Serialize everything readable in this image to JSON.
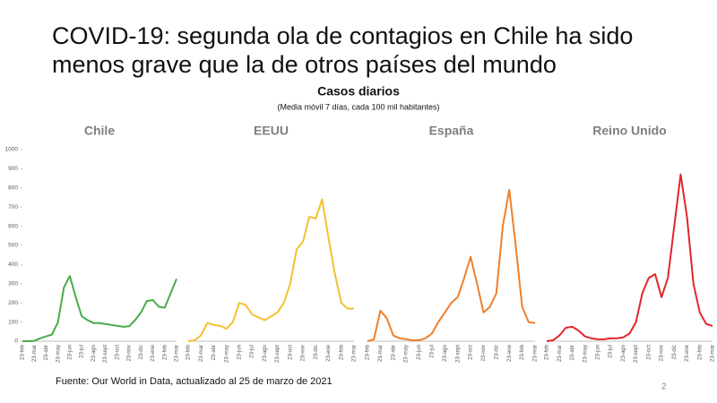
{
  "header": {
    "title_line1": "COVID-19: segunda ola de contagios en Chile ha sido",
    "title_line2": "menos grave que la de otros países del mundo",
    "chart_title": "Casos diarios",
    "chart_subtitle": "(Media móvil 7 días, cada 100 mil habitantes)"
  },
  "footer": {
    "source": "Fuente: Our World in Data, actualizado al 25 de marzo de 2021",
    "page_number": "2"
  },
  "chart_data": [
    {
      "type": "line",
      "title": "Chile",
      "color": "#4aab4a",
      "categories": [
        "23-feb",
        null,
        "23-mar",
        null,
        "23-abr",
        null,
        "23-may",
        null,
        "23-jun",
        null,
        "23-jul",
        null,
        "23-ago",
        null,
        "23-sept",
        null,
        "23-oct",
        null,
        "23-nov",
        null,
        "23-dic",
        null,
        "23-ene",
        null,
        "23-feb",
        null,
        "23-mar"
      ],
      "values": [
        0,
        0,
        2,
        15,
        25,
        35,
        100,
        280,
        340,
        230,
        130,
        110,
        95,
        95,
        90,
        85,
        80,
        75,
        78,
        110,
        150,
        210,
        215,
        180,
        175,
        250,
        325
      ],
      "ylim": [
        0,
        1000
      ],
      "yticks": [
        0,
        100,
        200,
        300,
        400,
        500,
        600,
        700,
        800,
        900,
        1000
      ]
    },
    {
      "type": "line",
      "title": "EEUU",
      "color": "#f2c12e",
      "categories": [
        "23-feb",
        null,
        "23-mar",
        null,
        "23-abr",
        null,
        "23-may",
        null,
        "23-jun",
        null,
        "23-jul",
        null,
        "23-ago",
        null,
        "23-sept",
        null,
        "23-oct",
        null,
        "23-nov",
        null,
        "23-dic",
        null,
        "23-ene",
        null,
        "23-feb",
        null,
        "23-mar"
      ],
      "values": [
        0,
        5,
        30,
        95,
        85,
        80,
        65,
        100,
        200,
        190,
        140,
        125,
        110,
        130,
        150,
        200,
        300,
        480,
        520,
        650,
        640,
        740,
        540,
        350,
        200,
        170,
        170
      ],
      "ylim": [
        0,
        1000
      ]
    },
    {
      "type": "line",
      "title": "España",
      "color": "#ef7f2a",
      "categories": [
        "23-feb",
        null,
        "23-mar",
        null,
        "23-abr",
        null,
        "23-may",
        null,
        "23-jun",
        null,
        "23-jul",
        null,
        "23-ago",
        null,
        "23-sept",
        null,
        "23-oct",
        null,
        "23-nov",
        null,
        "23-dic",
        null,
        "23-ene",
        null,
        "23-feb",
        null,
        "23-mar"
      ],
      "values": [
        0,
        10,
        160,
        120,
        30,
        15,
        10,
        5,
        5,
        15,
        40,
        100,
        150,
        200,
        230,
        330,
        440,
        300,
        150,
        180,
        250,
        600,
        790,
        500,
        180,
        100,
        95
      ],
      "ylim": [
        0,
        1000
      ]
    },
    {
      "type": "line",
      "title": "Reino Unido",
      "color": "#e0262b",
      "categories": [
        "23-feb",
        null,
        "23-mar",
        null,
        "23-abr",
        null,
        "23-may",
        null,
        "23-jun",
        null,
        "23-jul",
        null,
        "23-ago",
        null,
        "23-sept",
        null,
        "23-oct",
        null,
        "23-nov",
        null,
        "23-dic",
        null,
        "23-ene",
        null,
        "23-feb",
        null,
        "23-mar"
      ],
      "values": [
        0,
        5,
        30,
        70,
        75,
        55,
        25,
        15,
        10,
        10,
        15,
        15,
        20,
        40,
        100,
        250,
        330,
        350,
        230,
        330,
        600,
        870,
        650,
        300,
        150,
        90,
        80
      ],
      "ylim": [
        0,
        1000
      ]
    }
  ]
}
